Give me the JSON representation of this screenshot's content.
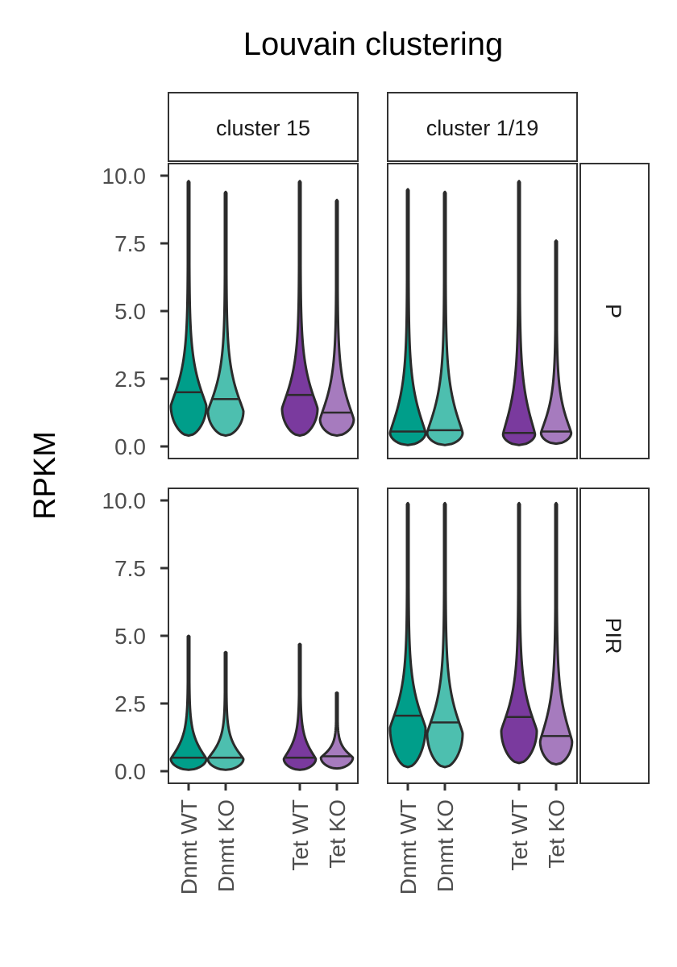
{
  "chart_data": {
    "type": "violin",
    "title": "Louvain clustering",
    "ylabel": "RPKM",
    "xlabel": "",
    "ylim": [
      0,
      10
    ],
    "y_ticks": [
      "0.0",
      "2.5",
      "5.0",
      "7.5",
      "10.0"
    ],
    "categories": [
      "Dnmt WT",
      "Dnmt KO",
      "Tet WT",
      "Tet KO"
    ],
    "category_colors": [
      "#009E8A",
      "#4DBFAF",
      "#7A3A9E",
      "#A67BBE"
    ],
    "facet_columns": [
      "cluster 15",
      "cluster 1/19"
    ],
    "facet_rows": [
      "P",
      "PIR"
    ],
    "grid": false,
    "panels": [
      {
        "column": "cluster 15",
        "row": "P",
        "violins": [
          {
            "category": "Dnmt WT",
            "min": 0.4,
            "mode": 1.5,
            "median": 2.0,
            "max": 9.8,
            "spread": 1.0
          },
          {
            "category": "Dnmt KO",
            "min": 0.4,
            "mode": 1.3,
            "median": 1.75,
            "max": 9.4,
            "spread": 1.0
          },
          {
            "category": "Tet WT",
            "min": 0.4,
            "mode": 1.4,
            "median": 1.9,
            "max": 9.8,
            "spread": 1.0
          },
          {
            "category": "Tet KO",
            "min": 0.4,
            "mode": 1.0,
            "median": 1.25,
            "max": 9.1,
            "spread": 0.95
          }
        ]
      },
      {
        "column": "cluster 1/19",
        "row": "P",
        "violins": [
          {
            "category": "Dnmt WT",
            "min": 0.05,
            "mode": 0.5,
            "median": 0.55,
            "max": 9.5,
            "spread": 1.0
          },
          {
            "category": "Dnmt KO",
            "min": 0.05,
            "mode": 0.5,
            "median": 0.6,
            "max": 9.4,
            "spread": 1.0
          },
          {
            "category": "Tet WT",
            "min": 0.05,
            "mode": 0.45,
            "median": 0.5,
            "max": 9.8,
            "spread": 0.9
          },
          {
            "category": "Tet KO",
            "min": 0.1,
            "mode": 0.5,
            "median": 0.55,
            "max": 7.6,
            "spread": 0.85
          }
        ]
      },
      {
        "column": "cluster 15",
        "row": "PIR",
        "violins": [
          {
            "category": "Dnmt WT",
            "min": 0.05,
            "mode": 0.45,
            "median": 0.5,
            "max": 5.0,
            "spread": 1.0
          },
          {
            "category": "Dnmt KO",
            "min": 0.05,
            "mode": 0.45,
            "median": 0.5,
            "max": 4.4,
            "spread": 1.0
          },
          {
            "category": "Tet WT",
            "min": 0.05,
            "mode": 0.45,
            "median": 0.5,
            "max": 4.7,
            "spread": 0.9
          },
          {
            "category": "Tet KO",
            "min": 0.1,
            "mode": 0.5,
            "median": 0.55,
            "max": 2.9,
            "spread": 0.9
          }
        ]
      },
      {
        "column": "cluster 1/19",
        "row": "PIR",
        "violins": [
          {
            "category": "Dnmt WT",
            "min": 0.15,
            "mode": 1.6,
            "median": 2.05,
            "max": 9.9,
            "spread": 1.0
          },
          {
            "category": "Dnmt KO",
            "min": 0.15,
            "mode": 1.4,
            "median": 1.8,
            "max": 9.9,
            "spread": 1.0
          },
          {
            "category": "Tet WT",
            "min": 0.3,
            "mode": 1.5,
            "median": 2.0,
            "max": 9.9,
            "spread": 1.0
          },
          {
            "category": "Tet KO",
            "min": 0.25,
            "mode": 1.1,
            "median": 1.3,
            "max": 9.9,
            "spread": 0.9
          }
        ]
      }
    ]
  }
}
